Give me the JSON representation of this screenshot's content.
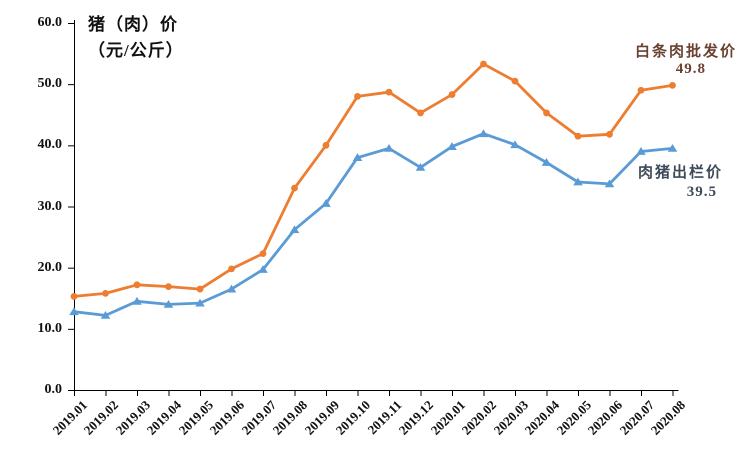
{
  "chart_data": {
    "type": "line",
    "title": "猪（肉）价",
    "title_line2": "（元/公斤）",
    "xlabel": "",
    "ylabel": "",
    "ylim": [
      0,
      60
    ],
    "ytick_step": 10,
    "ytick_labels": [
      "0.0",
      "10.0",
      "20.0",
      "30.0",
      "40.0",
      "50.0",
      "60.0"
    ],
    "grid": false,
    "legend_position": "line-end-annotations",
    "axis_color": "#000000",
    "categories": [
      "2019.01",
      "2019.02",
      "2019.03",
      "2019.04",
      "2019.05",
      "2019.06",
      "2019.07",
      "2019.08",
      "2019.09",
      "2019.10",
      "2019.11",
      "2019.12",
      "2020.01",
      "2020.02",
      "2020.03",
      "2020.04",
      "2020.05",
      "2020.06",
      "2020.07",
      "2020.08"
    ],
    "series": [
      {
        "name": "白条肉批发价",
        "end_label": "49.8",
        "color": "#ED7D31",
        "label_color": "#6B4232",
        "marker": "circle",
        "values": [
          15.3,
          15.8,
          17.2,
          16.9,
          16.5,
          19.8,
          22.3,
          33.0,
          40.0,
          48.0,
          48.7,
          45.3,
          48.3,
          53.3,
          50.5,
          45.3,
          41.5,
          41.8,
          49.0,
          49.8
        ]
      },
      {
        "name": "肉猪出栏价",
        "end_label": "39.5",
        "color": "#5B9BD5",
        "label_color": "#3E4A58",
        "marker": "triangle",
        "values": [
          12.8,
          12.2,
          14.5,
          14.0,
          14.2,
          16.5,
          19.7,
          26.2,
          30.5,
          38.0,
          39.5,
          36.4,
          39.8,
          41.9,
          40.1,
          37.2,
          34.0,
          33.7,
          39.0,
          39.5
        ]
      }
    ]
  }
}
